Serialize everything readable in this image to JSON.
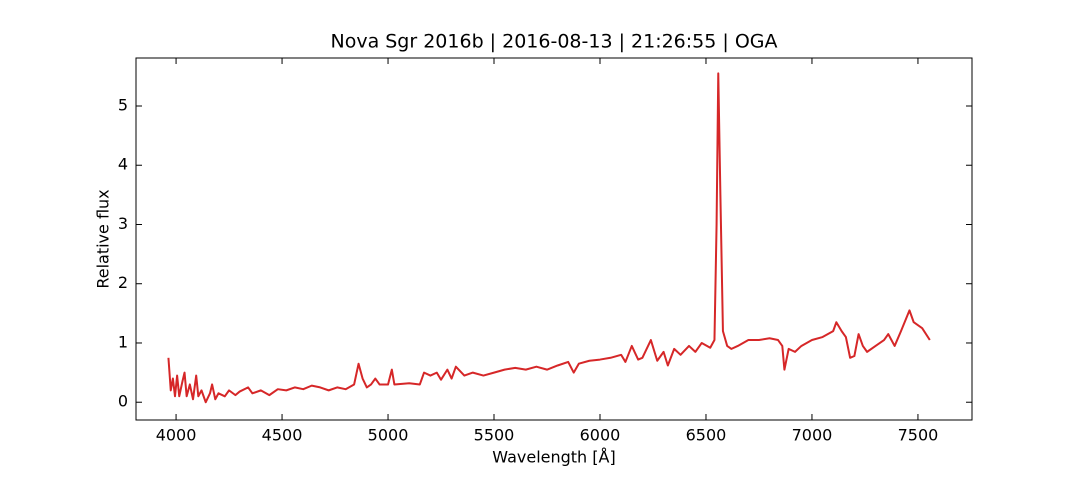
{
  "chart_data": {
    "type": "line",
    "title": "Nova Sgr 2016b | 2016-08-13 | 21:26:55 | OGA",
    "x_label": "Wavelength [Å]",
    "y_label": "Relative flux",
    "xlim": [
      3811,
      7755
    ],
    "ylim": [
      -0.3,
      5.81
    ],
    "xticks": [
      4000,
      4500,
      5000,
      5500,
      6000,
      6500,
      7000,
      7500
    ],
    "yticks": [
      0,
      1,
      2,
      3,
      4,
      5
    ],
    "ticks_direction": "in",
    "mirror_ticks": true,
    "grid": false,
    "x": [
      3964,
      3975,
      3985,
      3995,
      4005,
      4015,
      4030,
      4040,
      4050,
      4065,
      4080,
      4095,
      4105,
      4120,
      4140,
      4160,
      4170,
      4185,
      4200,
      4230,
      4250,
      4280,
      4300,
      4340,
      4360,
      4400,
      4440,
      4480,
      4520,
      4560,
      4600,
      4640,
      4680,
      4720,
      4760,
      4800,
      4840,
      4861,
      4880,
      4900,
      4920,
      4940,
      4960,
      5000,
      5018,
      5030,
      5100,
      5150,
      5170,
      5200,
      5230,
      5250,
      5280,
      5300,
      5320,
      5360,
      5400,
      5450,
      5500,
      5550,
      5600,
      5650,
      5700,
      5750,
      5800,
      5850,
      5876,
      5900,
      5950,
      6000,
      6050,
      6100,
      6120,
      6150,
      6180,
      6200,
      6240,
      6270,
      6300,
      6320,
      6350,
      6380,
      6420,
      6450,
      6480,
      6520,
      6540,
      6550,
      6558,
      6568,
      6580,
      6600,
      6620,
      6650,
      6700,
      6750,
      6800,
      6840,
      6860,
      6870,
      6890,
      6920,
      6950,
      7000,
      7050,
      7100,
      7115,
      7140,
      7160,
      7180,
      7200,
      7220,
      7240,
      7260,
      7300,
      7340,
      7360,
      7390,
      7420,
      7460,
      7480,
      7520,
      7556
    ],
    "series": [
      {
        "name": "Nova Sgr 2016b",
        "color": "#d62728",
        "values": [
          0.75,
          0.2,
          0.4,
          0.1,
          0.45,
          0.1,
          0.35,
          0.5,
          0.1,
          0.3,
          0.05,
          0.45,
          0.1,
          0.2,
          0.0,
          0.15,
          0.3,
          0.05,
          0.15,
          0.1,
          0.2,
          0.12,
          0.18,
          0.25,
          0.15,
          0.2,
          0.12,
          0.22,
          0.2,
          0.25,
          0.22,
          0.28,
          0.25,
          0.2,
          0.25,
          0.22,
          0.3,
          0.65,
          0.4,
          0.25,
          0.3,
          0.4,
          0.3,
          0.3,
          0.55,
          0.3,
          0.32,
          0.3,
          0.5,
          0.45,
          0.5,
          0.38,
          0.55,
          0.4,
          0.6,
          0.45,
          0.5,
          0.45,
          0.5,
          0.55,
          0.58,
          0.55,
          0.6,
          0.55,
          0.62,
          0.68,
          0.5,
          0.65,
          0.7,
          0.72,
          0.75,
          0.8,
          0.68,
          0.95,
          0.72,
          0.75,
          1.05,
          0.7,
          0.85,
          0.62,
          0.9,
          0.8,
          0.95,
          0.85,
          1.0,
          0.92,
          1.05,
          3.0,
          5.55,
          3.5,
          1.2,
          0.95,
          0.9,
          0.95,
          1.05,
          1.05,
          1.08,
          1.05,
          0.95,
          0.55,
          0.9,
          0.85,
          0.95,
          1.05,
          1.1,
          1.2,
          1.35,
          1.2,
          1.1,
          0.75,
          0.78,
          1.15,
          0.95,
          0.85,
          0.95,
          1.05,
          1.15,
          0.95,
          1.2,
          1.55,
          1.35,
          1.25,
          1.05
        ]
      }
    ]
  }
}
